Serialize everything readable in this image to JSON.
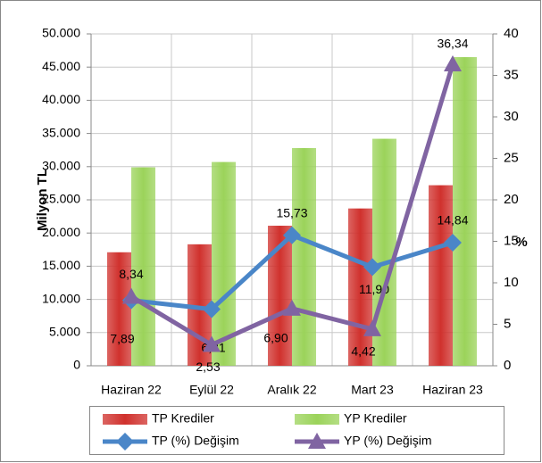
{
  "chart_data": {
    "type": "bar",
    "y_label": "Milyon TL",
    "y2_label": "%",
    "categories": [
      "Haziran 22",
      "Eylül 22",
      "Aralık 22",
      "Mart 23",
      "Haziran 23"
    ],
    "series": [
      {
        "name": "TP Krediler",
        "type": "bar",
        "color": "#d0312d",
        "values": [
          17100,
          18300,
          21100,
          23700,
          27200
        ]
      },
      {
        "name": "YP Krediler",
        "type": "bar",
        "color": "#9bd35a",
        "values": [
          29900,
          30700,
          32800,
          34200,
          46500
        ]
      },
      {
        "name": "TP (%) Değişim",
        "type": "line",
        "axis": "y2",
        "marker": "diamond",
        "color": "#4a86c8",
        "values": [
          7.89,
          6.81,
          15.73,
          11.9,
          14.84
        ],
        "value_labels": [
          "7,89",
          "6,81",
          "15,73",
          "11,90",
          "14,84"
        ]
      },
      {
        "name": "YP (%) Değişim",
        "type": "line",
        "axis": "y2",
        "marker": "triangle",
        "color": "#8064a2",
        "values": [
          8.34,
          2.53,
          6.9,
          4.42,
          36.34
        ],
        "value_labels": [
          "8,34",
          "2,53",
          "6,90",
          "4,42",
          "36,34"
        ]
      }
    ],
    "ylim": [
      0,
      50000
    ],
    "yticks": [
      0,
      {
        "value": 5000,
        "label": "5.000"
      },
      {
        "value": 10000,
        "label": "10.000"
      },
      {
        "value": 15000,
        "label": "15.000"
      },
      {
        "value": 20000,
        "label": "20.000"
      },
      {
        "value": 25000,
        "label": "25.000"
      },
      {
        "value": 30000,
        "label": "30.000"
      },
      {
        "value": 35000,
        "label": "35.000"
      },
      {
        "value": 40000,
        "label": "40.000"
      },
      {
        "value": 45000,
        "label": "45.000"
      },
      {
        "value": 50000,
        "label": "50.000"
      }
    ],
    "y2lim": [
      0,
      40
    ],
    "y2ticks": [
      0,
      5,
      10,
      15,
      20,
      25,
      30,
      35,
      40
    ],
    "grid": true,
    "legend": "bottom"
  }
}
